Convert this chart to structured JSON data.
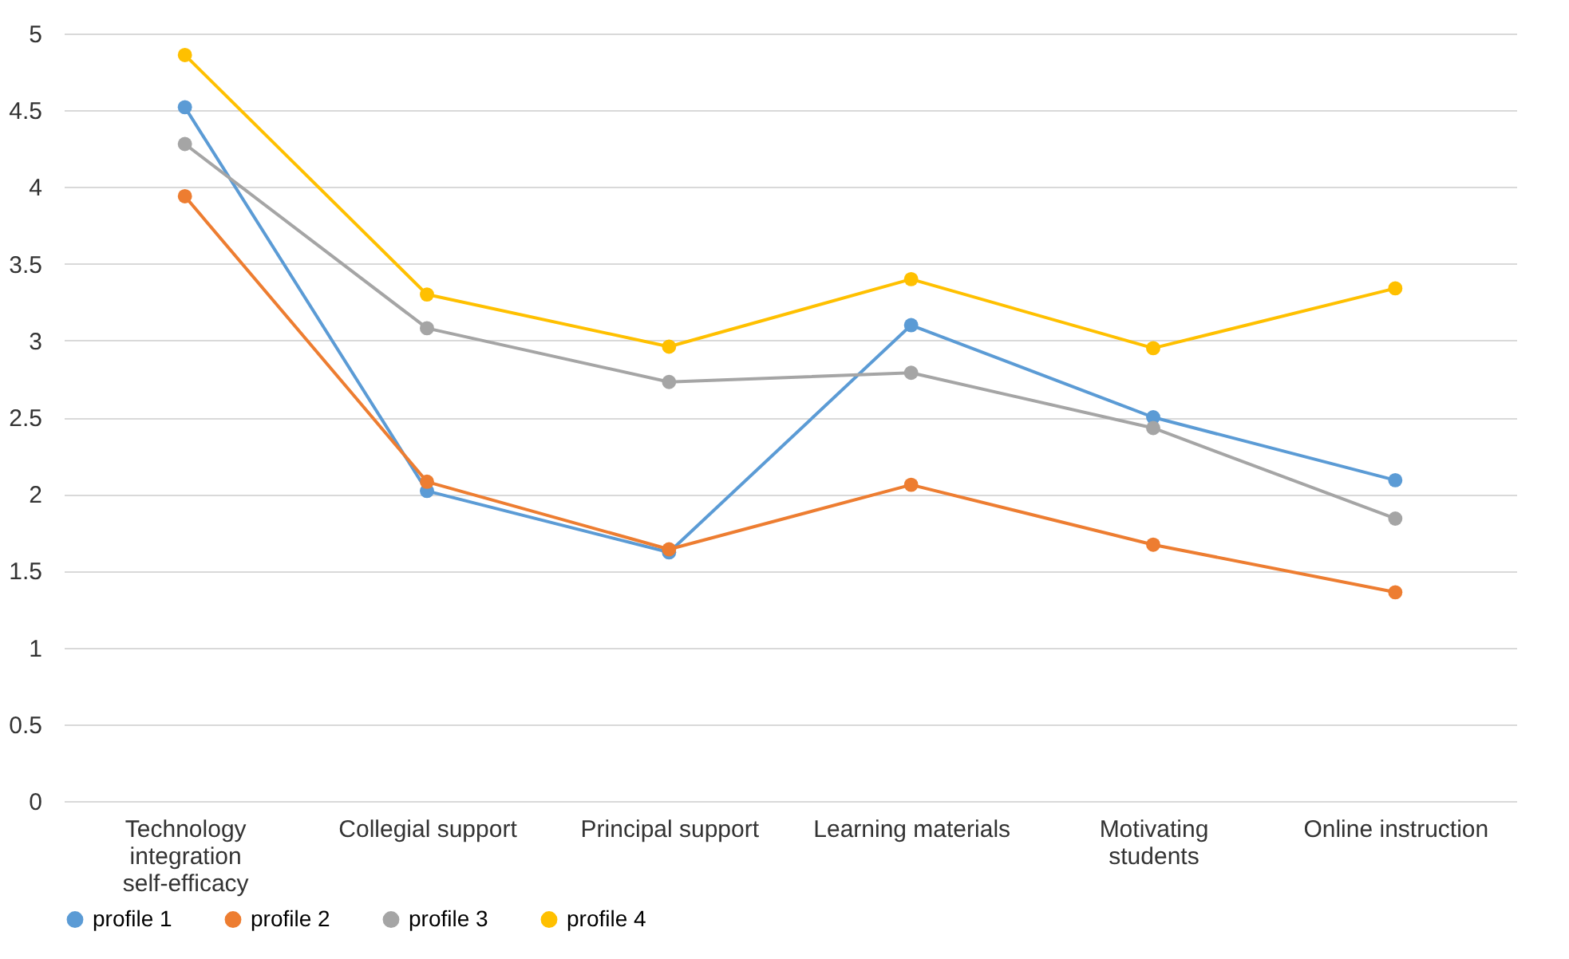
{
  "chart_data": {
    "type": "line",
    "categories": [
      "Technology integration self-efficacy",
      "Collegial support",
      "Principal support",
      "Learning materials",
      "Motivating students",
      "Online instruction"
    ],
    "series": [
      {
        "name": "profile 1",
        "color": "#5b9bd5",
        "values": [
          4.52,
          2.02,
          1.62,
          3.1,
          2.5,
          2.09
        ]
      },
      {
        "name": "profile 2",
        "color": "#ed7d31",
        "values": [
          3.94,
          2.08,
          1.64,
          2.06,
          1.67,
          1.36
        ]
      },
      {
        "name": "profile 3",
        "color": "#a5a5a5",
        "values": [
          4.28,
          3.08,
          2.73,
          2.79,
          2.43,
          1.84
        ]
      },
      {
        "name": "profile 4",
        "color": "#ffc000",
        "values": [
          4.86,
          3.3,
          2.96,
          3.4,
          2.95,
          3.34
        ]
      }
    ],
    "ylim": [
      0,
      5
    ],
    "yticks": [
      0,
      0.5,
      1,
      1.5,
      2,
      2.5,
      3,
      3.5,
      4,
      4.5,
      5
    ],
    "grid": "y",
    "legend": "bottom",
    "marker": "circle",
    "line_style": "solid"
  }
}
